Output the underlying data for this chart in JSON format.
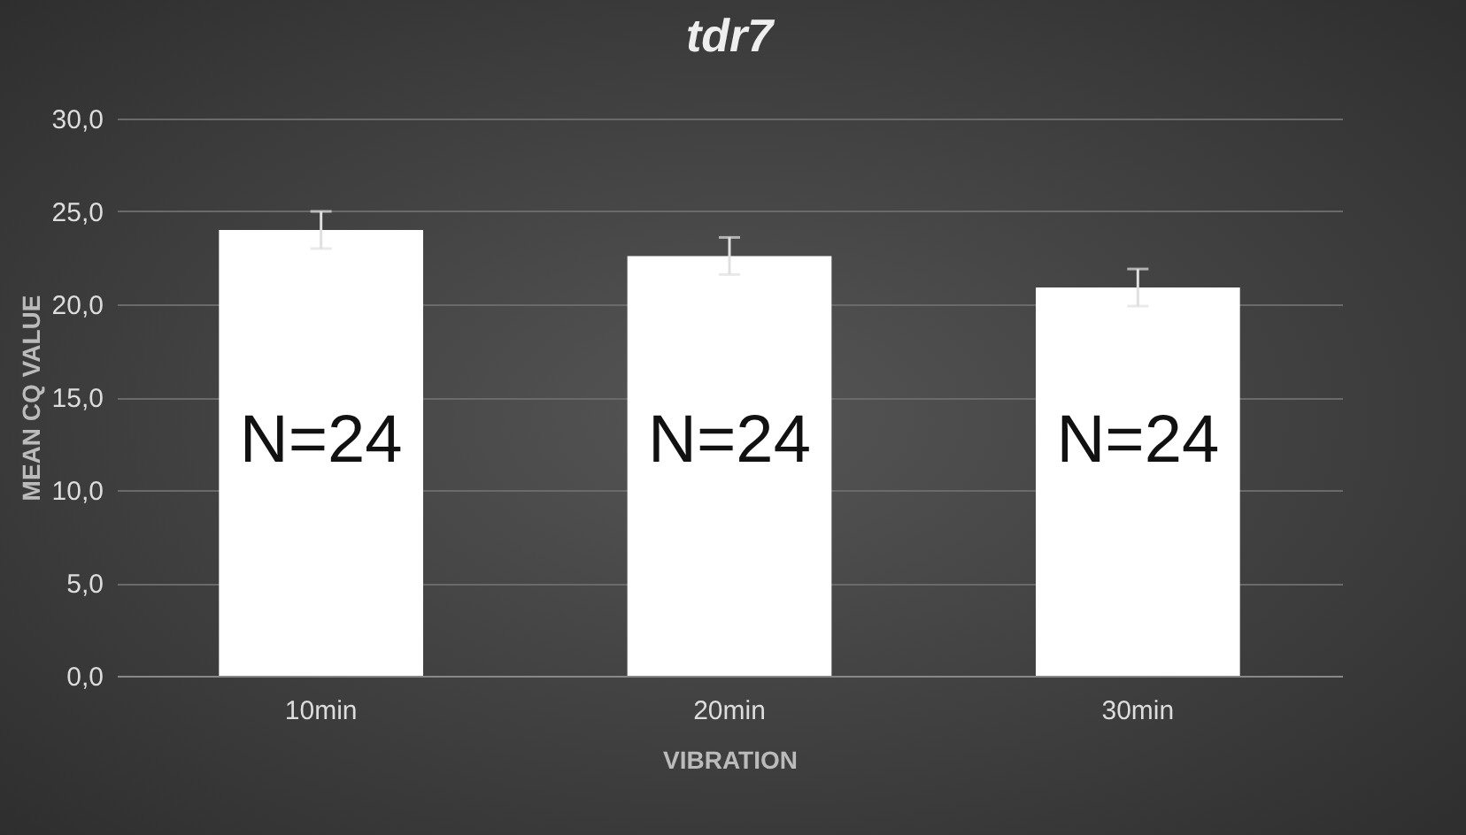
{
  "chart_data": {
    "type": "bar",
    "title": "tdr7",
    "xlabel": "VIBRATION",
    "ylabel": "MEAN CQ VALUE",
    "categories": [
      "10min",
      "20min",
      "30min"
    ],
    "values": [
      24.0,
      22.6,
      20.9
    ],
    "errors": [
      1.0,
      1.0,
      1.0
    ],
    "color": "#ffffff",
    "ylim": [
      0,
      30
    ],
    "yticks": [
      {
        "value": 0,
        "label": "0,0"
      },
      {
        "value": 5,
        "label": "5,0"
      },
      {
        "value": 10,
        "label": "10,0"
      },
      {
        "value": 15,
        "label": "15,0"
      },
      {
        "value": 20,
        "label": "20,0"
      },
      {
        "value": 25,
        "label": "25,0"
      },
      {
        "value": 30,
        "label": "30,0"
      }
    ],
    "grid": "y",
    "annotations": [
      "N=24",
      "N=24",
      "N=24"
    ]
  }
}
